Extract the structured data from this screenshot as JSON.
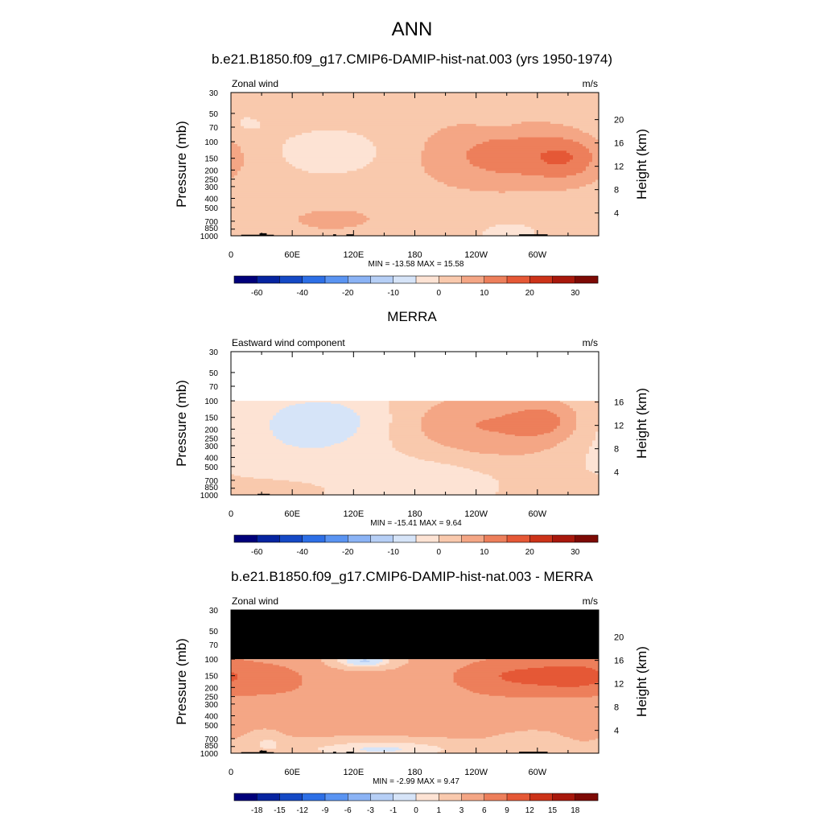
{
  "figure_title": "ANN",
  "chart_data": [
    {
      "type": "heatmap",
      "title": "b.e21.B1850.f09_g17.CMIP6-DAMIP-hist-nat.003 (yrs 1950-1974)",
      "variable_label": "Zonal wind",
      "units": "m/s",
      "ylabel": "Pressure (mb)",
      "y2label": "Height (km)",
      "pressure_ticks": [
        30,
        50,
        70,
        100,
        150,
        200,
        250,
        300,
        400,
        500,
        700,
        850,
        1000
      ],
      "height_ticks": [
        20,
        16,
        12,
        8,
        4
      ],
      "x_tick_labels": [
        "0",
        "60E",
        "120E",
        "180",
        "120W",
        "60W"
      ],
      "x_tick_lons": [
        0,
        60,
        120,
        180,
        240,
        300
      ],
      "stats": "MIN = -13.58  MAX =  15.58",
      "colorbar_levels": [
        -70,
        -60,
        -50,
        -40,
        -30,
        -20,
        -15,
        -10,
        -5,
        0,
        5,
        10,
        15,
        20,
        25,
        30,
        35
      ],
      "colorbar_labels": [
        "-60",
        "-40",
        "-20",
        "-10",
        "0",
        "10",
        "20",
        "30"
      ],
      "colors": [
        "#00007a",
        "#0624a0",
        "#1549c5",
        "#2d6fe6",
        "#5a94f2",
        "#8bb3f5",
        "#b6cff6",
        "#d6e4f8",
        "#fde3d4",
        "#f9c9ad",
        "#f4a685",
        "#ed7f5b",
        "#e55836",
        "#cc3319",
        "#a8180c",
        "#7d0a05"
      ],
      "data_top_pressure": 30,
      "blobs": [
        {
          "lon": 180,
          "p": 150,
          "slon": 140,
          "sp": 1.3,
          "amp": 2.5
        },
        {
          "lon": 100,
          "p": 130,
          "slon": 40,
          "sp": 0.45,
          "amp": -7
        },
        {
          "lon": 270,
          "p": 140,
          "slon": 45,
          "sp": 0.5,
          "amp": 9
        },
        {
          "lon": 330,
          "p": 150,
          "slon": 25,
          "sp": 0.4,
          "amp": 9
        },
        {
          "lon": 95,
          "p": 700,
          "slon": 55,
          "sp": 0.35,
          "amp": 3
        },
        {
          "lon": 15,
          "p": 65,
          "slon": 20,
          "sp": 0.25,
          "amp": -3
        },
        {
          "lon": 270,
          "p": 900,
          "slon": 35,
          "sp": 0.3,
          "amp": -3
        },
        {
          "lon": 260,
          "p": 60,
          "slon": 15,
          "sp": 0.2,
          "amp": -2
        }
      ],
      "topo": [
        {
          "lon0": 10,
          "lon1": 28,
          "p": 975
        },
        {
          "lon0": 28,
          "lon1": 35,
          "p": 940
        },
        {
          "lon0": 35,
          "lon1": 42,
          "p": 975
        },
        {
          "lon0": 100,
          "lon1": 103,
          "p": 965
        },
        {
          "lon0": 113,
          "lon1": 120,
          "p": 965
        },
        {
          "lon0": 282,
          "lon1": 310,
          "p": 965
        }
      ]
    },
    {
      "type": "heatmap",
      "title": "MERRA",
      "variable_label": "Eastward wind component",
      "units": "m/s",
      "ylabel": "Pressure (mb)",
      "y2label": "Height (km)",
      "pressure_ticks": [
        30,
        50,
        70,
        100,
        150,
        200,
        250,
        300,
        400,
        500,
        700,
        850,
        1000
      ],
      "height_ticks": [
        16,
        12,
        8,
        4
      ],
      "x_tick_labels": [
        "0",
        "60E",
        "120E",
        "180",
        "120W",
        "60W"
      ],
      "x_tick_lons": [
        0,
        60,
        120,
        180,
        240,
        300
      ],
      "stats": "MIN = -15.41  MAX =   9.64",
      "colorbar_levels": [
        -70,
        -60,
        -50,
        -40,
        -30,
        -20,
        -15,
        -10,
        -5,
        0,
        5,
        10,
        15,
        20,
        25,
        30,
        35
      ],
      "colorbar_labels": [
        "-60",
        "-40",
        "-20",
        "-10",
        "0",
        "10",
        "20",
        "30"
      ],
      "colors": [
        "#00007a",
        "#0624a0",
        "#1549c5",
        "#2d6fe6",
        "#5a94f2",
        "#8bb3f5",
        "#b6cff6",
        "#d6e4f8",
        "#fde3d4",
        "#f9c9ad",
        "#f4a685",
        "#ed7f5b",
        "#e55836",
        "#cc3319",
        "#a8180c",
        "#7d0a05"
      ],
      "data_top_pressure": 100,
      "blobs": [
        {
          "lon": 60,
          "p": 400,
          "slon": 80,
          "sp": 1.4,
          "amp": -5
        },
        {
          "lon": 95,
          "p": 160,
          "slon": 45,
          "sp": 0.45,
          "amp": -6
        },
        {
          "lon": 235,
          "p": 180,
          "slon": 55,
          "sp": 0.55,
          "amp": 8
        },
        {
          "lon": 310,
          "p": 160,
          "slon": 25,
          "sp": 0.35,
          "amp": 7
        },
        {
          "lon": 200,
          "p": 700,
          "slon": 60,
          "sp": 0.4,
          "amp": -4
        },
        {
          "lon": 300,
          "p": 300,
          "slon": 40,
          "sp": 0.8,
          "amp": 3
        },
        {
          "lon": 50,
          "p": 850,
          "slon": 60,
          "sp": 0.3,
          "amp": 4
        }
      ],
      "topo": [
        {
          "lon0": 12,
          "lon1": 26,
          "p": 990
        },
        {
          "lon0": 26,
          "lon1": 38,
          "p": 975
        },
        {
          "lon0": 283,
          "lon1": 290,
          "p": 990
        }
      ]
    },
    {
      "type": "heatmap",
      "title": "b.e21.B1850.f09_g17.CMIP6-DAMIP-hist-nat.003 - MERRA",
      "variable_label": "Zonal wind",
      "units": "m/s",
      "ylabel": "Pressure (mb)",
      "y2label": "Height (km)",
      "pressure_ticks": [
        30,
        50,
        70,
        100,
        150,
        200,
        250,
        300,
        400,
        500,
        700,
        850,
        1000
      ],
      "height_ticks": [
        20,
        16,
        12,
        8,
        4
      ],
      "x_tick_labels": [
        "0",
        "60E",
        "120E",
        "180",
        "120W",
        "60W"
      ],
      "x_tick_lons": [
        0,
        60,
        120,
        180,
        240,
        300
      ],
      "stats": "MIN = -2.99  MAX =   9.47",
      "colorbar_levels": [
        -21,
        -18,
        -15,
        -12,
        -9,
        -6,
        -3,
        -1,
        0,
        1,
        3,
        6,
        9,
        12,
        15,
        18,
        21
      ],
      "colorbar_labels": [
        "-18",
        "-15",
        "-12",
        "-9",
        "-6",
        "-3",
        "-1",
        "0",
        "1",
        "3",
        "6",
        "9",
        "12",
        "15",
        "18"
      ],
      "colors": [
        "#00007a",
        "#0624a0",
        "#1549c5",
        "#2d6fe6",
        "#5a94f2",
        "#8bb3f5",
        "#b6cff6",
        "#d6e4f8",
        "#fde3d4",
        "#f9c9ad",
        "#f4a685",
        "#ed7f5b",
        "#e55836",
        "#cc3319",
        "#a8180c",
        "#7d0a05"
      ],
      "data_top_pressure": 100,
      "masked_above_pressure": 100,
      "blobs": [
        {
          "lon": 180,
          "p": 300,
          "slon": 200,
          "sp": 1.6,
          "amp": 3
        },
        {
          "lon": 275,
          "p": 150,
          "slon": 40,
          "sp": 0.35,
          "amp": 5
        },
        {
          "lon": 340,
          "p": 150,
          "slon": 30,
          "sp": 0.35,
          "amp": 5
        },
        {
          "lon": 40,
          "p": 160,
          "slon": 35,
          "sp": 0.4,
          "amp": 3
        },
        {
          "lon": 130,
          "p": 105,
          "slon": 25,
          "sp": 0.15,
          "amp": -5
        },
        {
          "lon": 150,
          "p": 900,
          "slon": 70,
          "sp": 0.2,
          "amp": -4
        },
        {
          "lon": 290,
          "p": 850,
          "slon": 25,
          "sp": 0.3,
          "amp": -2
        },
        {
          "lon": 35,
          "p": 750,
          "slon": 12,
          "sp": 0.2,
          "amp": -2
        }
      ],
      "topo": [
        {
          "lon0": 10,
          "lon1": 28,
          "p": 975
        },
        {
          "lon0": 28,
          "lon1": 35,
          "p": 940
        },
        {
          "lon0": 35,
          "lon1": 42,
          "p": 975
        },
        {
          "lon0": 100,
          "lon1": 103,
          "p": 965
        },
        {
          "lon0": 113,
          "lon1": 120,
          "p": 965
        },
        {
          "lon0": 282,
          "lon1": 310,
          "p": 965
        }
      ]
    }
  ]
}
